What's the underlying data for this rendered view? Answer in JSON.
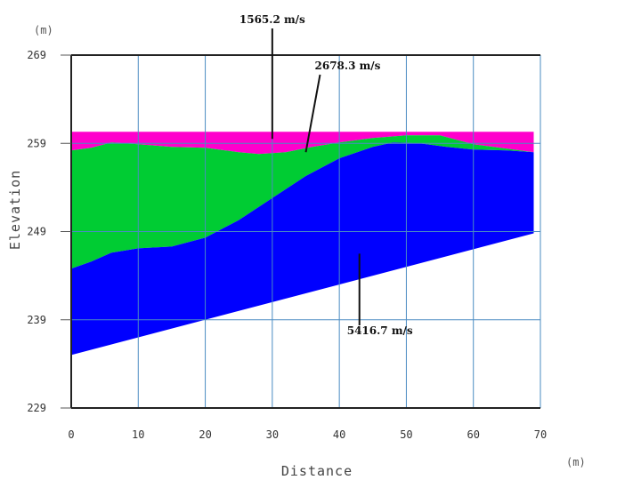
{
  "chart_data": {
    "type": "area",
    "xlabel": "Distance",
    "ylabel": "Elevation",
    "x_unit": "(m)",
    "y_unit": "(m)",
    "xlim": [
      0,
      70
    ],
    "ylim": [
      229,
      269
    ],
    "x_ticks": [
      0,
      10,
      20,
      30,
      40,
      50,
      60,
      70
    ],
    "y_ticks": [
      229,
      239,
      249,
      259,
      269
    ],
    "grid": true,
    "layers": [
      {
        "velocity": "1565.2 m/s",
        "color": "#ff00cc",
        "top": [
          [
            0,
            260.3
          ],
          [
            69,
            260.3
          ]
        ],
        "bottom": [
          [
            0,
            258.2
          ],
          [
            3,
            258.5
          ],
          [
            6,
            259.1
          ],
          [
            10,
            258.9
          ],
          [
            15,
            258.6
          ],
          [
            20,
            258.5
          ],
          [
            25,
            258.0
          ],
          [
            28,
            257.8
          ],
          [
            32,
            258.0
          ],
          [
            36,
            258.6
          ],
          [
            40,
            259.1
          ],
          [
            45,
            259.6
          ],
          [
            50,
            259.9
          ],
          [
            55,
            259.9
          ],
          [
            60,
            258.9
          ],
          [
            65,
            258.4
          ],
          [
            69,
            258.0
          ]
        ]
      },
      {
        "velocity": "2678.3 m/s",
        "color": "#00cc33",
        "top": [
          [
            0,
            258.2
          ],
          [
            3,
            258.5
          ],
          [
            6,
            259.1
          ],
          [
            10,
            258.9
          ],
          [
            15,
            258.6
          ],
          [
            20,
            258.5
          ],
          [
            25,
            258.0
          ],
          [
            28,
            257.8
          ],
          [
            32,
            258.0
          ],
          [
            36,
            258.6
          ],
          [
            40,
            259.1
          ],
          [
            45,
            259.6
          ],
          [
            50,
            259.9
          ],
          [
            55,
            259.9
          ],
          [
            60,
            258.9
          ],
          [
            65,
            258.4
          ],
          [
            69,
            258.0
          ]
        ],
        "bottom": [
          [
            0,
            244.8
          ],
          [
            3,
            245.6
          ],
          [
            6,
            246.6
          ],
          [
            10,
            247.1
          ],
          [
            15,
            247.3
          ],
          [
            20,
            248.3
          ],
          [
            25,
            250.3
          ],
          [
            30,
            252.8
          ],
          [
            35,
            255.3
          ],
          [
            40,
            257.3
          ],
          [
            45,
            258.6
          ],
          [
            48,
            259.1
          ],
          [
            52,
            259.0
          ],
          [
            56,
            258.6
          ],
          [
            60,
            258.3
          ],
          [
            65,
            258.2
          ],
          [
            69,
            258.0
          ]
        ]
      },
      {
        "velocity": "5416.7 m/s",
        "color": "#0000ff",
        "top": [
          [
            0,
            244.8
          ],
          [
            3,
            245.6
          ],
          [
            6,
            246.6
          ],
          [
            10,
            247.1
          ],
          [
            15,
            247.3
          ],
          [
            20,
            248.3
          ],
          [
            25,
            250.3
          ],
          [
            30,
            252.8
          ],
          [
            35,
            255.3
          ],
          [
            40,
            257.3
          ],
          [
            45,
            258.6
          ],
          [
            48,
            259.1
          ],
          [
            52,
            259.0
          ],
          [
            56,
            258.6
          ],
          [
            60,
            258.3
          ],
          [
            65,
            258.2
          ],
          [
            69,
            258.0
          ]
        ],
        "bottom": [
          [
            0,
            235.0
          ],
          [
            69,
            248.8
          ]
        ]
      }
    ],
    "annotations": [
      {
        "text": "1565.2 m/s",
        "target": [
          30,
          259.5
        ]
      },
      {
        "text": "2678.3 m/s",
        "target": [
          35,
          258.0
        ]
      },
      {
        "text": "5416.7 m/s",
        "target": [
          43,
          246.5
        ]
      }
    ]
  }
}
